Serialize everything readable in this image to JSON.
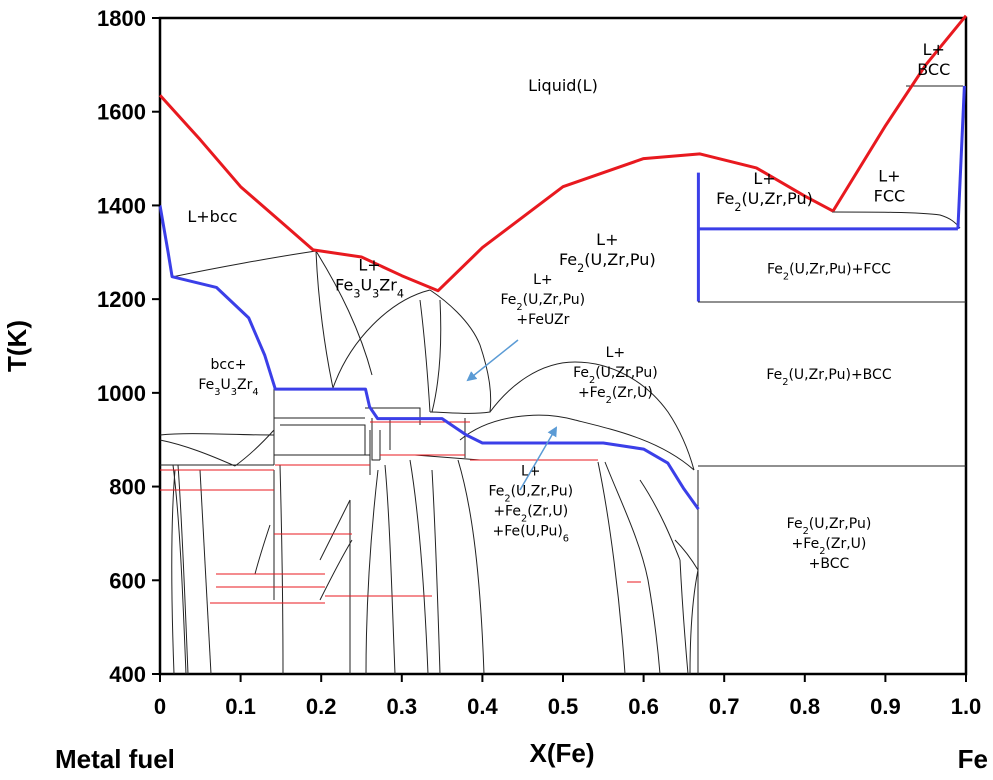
{
  "chart_data": {
    "type": "line",
    "xlabel": "X(Fe)",
    "ylabel": "T(K)",
    "xlim": [
      0,
      1.0
    ],
    "ylim": [
      400,
      1800
    ],
    "x_ticks": [
      "0",
      "0.1",
      "0.2",
      "0.3",
      "0.4",
      "0.5",
      "0.6",
      "0.7",
      "0.8",
      "0.9",
      "1.0"
    ],
    "y_ticks": [
      "400",
      "600",
      "800",
      "1000",
      "1200",
      "1400",
      "1600",
      "1800"
    ],
    "left_end_label": "Metal fuel",
    "right_end_label": "Fe",
    "colors": {
      "liquidus": "#e8191f",
      "solidus": "#3b3fe8",
      "phase_boundary": "#222222",
      "minor_boundary": "#e8191f",
      "arrow": "#5b9bd5"
    },
    "series": [
      {
        "role": "liquidus",
        "points": [
          [
            0,
            1635
          ],
          [
            0.05,
            1540
          ],
          [
            0.1,
            1440
          ],
          [
            0.15,
            1365
          ],
          [
            0.19,
            1305
          ],
          [
            0.25,
            1290
          ],
          [
            0.3,
            1250
          ],
          [
            0.345,
            1218
          ],
          [
            0.4,
            1310
          ],
          [
            0.5,
            1440
          ],
          [
            0.6,
            1500
          ],
          [
            0.67,
            1510
          ],
          [
            0.74,
            1480
          ],
          [
            0.8,
            1420
          ],
          [
            0.835,
            1388
          ]
        ]
      },
      {
        "role": "liquidus",
        "points": [
          [
            0.835,
            1388
          ],
          [
            0.9,
            1570
          ],
          [
            0.95,
            1700
          ],
          [
            1.0,
            1805
          ]
        ]
      },
      {
        "role": "solidus",
        "points": [
          [
            0,
            1400
          ],
          [
            0.01,
            1300
          ],
          [
            0.015,
            1248
          ],
          [
            0.07,
            1225
          ],
          [
            0.11,
            1160
          ],
          [
            0.13,
            1080
          ],
          [
            0.143,
            1008
          ],
          [
            0.255,
            1008
          ],
          [
            0.26,
            970
          ],
          [
            0.27,
            945
          ],
          [
            0.35,
            945
          ],
          [
            0.38,
            910
          ],
          [
            0.4,
            893
          ],
          [
            0.55,
            893
          ],
          [
            0.6,
            880
          ],
          [
            0.63,
            850
          ],
          [
            0.65,
            795
          ],
          [
            0.668,
            752
          ]
        ]
      },
      {
        "role": "solidus",
        "points": [
          [
            0.668,
            1470
          ],
          [
            0.668,
            1195
          ]
        ]
      },
      {
        "role": "solidus",
        "points": [
          [
            0.668,
            1350
          ],
          [
            0.99,
            1350
          ]
        ]
      },
      {
        "role": "solidus",
        "points": [
          [
            0.99,
            1350
          ],
          [
            0.998,
            1655
          ]
        ]
      }
    ],
    "regions": [
      {
        "lines": [
          "Liquid(L)"
        ],
        "x": 0.5,
        "y": 1655
      },
      {
        "lines": [
          "L+bcc"
        ],
        "x": 0.065,
        "y": 1375
      },
      {
        "lines": [
          "L+",
          "Fe3U3Zr4"
        ],
        "x": 0.26,
        "y": 1250
      },
      {
        "lines": [
          "L+",
          "Fe2(U,Zr,Pu)"
        ],
        "x": 0.555,
        "y": 1305
      },
      {
        "lines": [
          "L+",
          "Fe2(U,Zr,Pu)",
          "+FeUZr"
        ],
        "x": 0.475,
        "y": 1200
      },
      {
        "lines": [
          "bcc+",
          "Fe3U3Zr4"
        ],
        "x": 0.085,
        "y": 1040
      },
      {
        "lines": [
          "L+",
          "Fe2(U,Zr,Pu)",
          "+Fe2(Zr,U)"
        ],
        "x": 0.565,
        "y": 1045
      },
      {
        "lines": [
          "L+",
          "Fe2(U,Zr,Pu)"
        ],
        "x": 0.75,
        "y": 1435
      },
      {
        "lines": [
          "L+",
          "BCC"
        ],
        "x": 0.96,
        "y": 1710
      },
      {
        "lines": [
          "L+",
          "FCC"
        ],
        "x": 0.905,
        "y": 1440
      },
      {
        "lines": [
          "Fe2(U,Zr,Pu)+FCC"
        ],
        "x": 0.83,
        "y": 1265
      },
      {
        "lines": [
          "Fe2(U,Zr,Pu)+BCC"
        ],
        "x": 0.83,
        "y": 1040
      },
      {
        "lines": [
          "L+",
          "Fe2(U,Zr,Pu)",
          "+Fe2(Zr,U)",
          "+Fe(U,Pu)6"
        ],
        "x": 0.46,
        "y": 770
      },
      {
        "lines": [
          "Fe2(U,Zr,Pu)",
          "+Fe2(Zr,U)",
          "+BCC"
        ],
        "x": 0.83,
        "y": 680
      }
    ],
    "grid": false,
    "legend": "none"
  }
}
